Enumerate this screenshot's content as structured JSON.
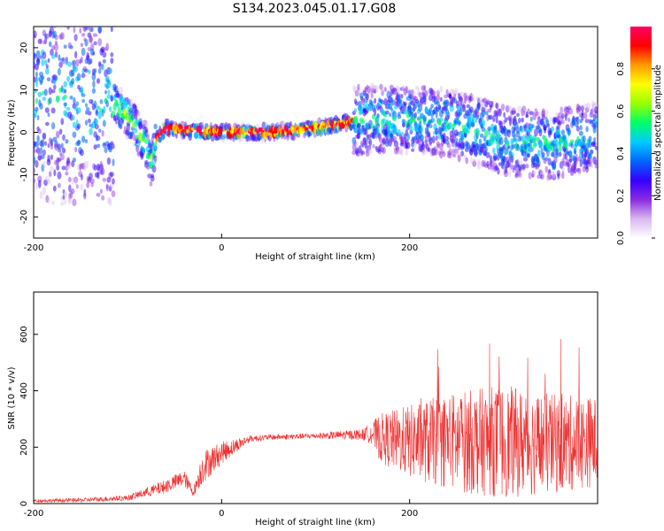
{
  "page": {
    "title": "S134.2023.045.01.17.G08"
  },
  "chart_data": [
    {
      "type": "heatmap",
      "title": "S134.2023.045.01.17.G08",
      "xlabel": "Height of straight line (km)",
      "ylabel": "Frequency (Hz)",
      "xlim": [
        -200,
        400
      ],
      "ylim": [
        -25,
        25
      ],
      "xticks": [
        -200,
        0,
        200
      ],
      "yticks": [
        20,
        10,
        0,
        -10,
        -20
      ],
      "grid": false,
      "colorbar": {
        "label": "Normalized spectral amplitude",
        "range": [
          0,
          1
        ],
        "ticks": [
          0.0,
          0.2,
          0.4,
          0.6,
          0.8
        ],
        "colors": [
          "#ffffff",
          "#d9b8f0",
          "#8a2be2",
          "#3300ff",
          "#0066ff",
          "#00ccff",
          "#00ff66",
          "#99ff00",
          "#ffff00",
          "#ff9900",
          "#ff0000",
          "#ff0066"
        ]
      },
      "ridge": {
        "x": [
          -120,
          -100,
          -80,
          -75,
          -70,
          -60,
          -40,
          0,
          50,
          100,
          150,
          200,
          250,
          300,
          350,
          400
        ],
        "y": [
          8,
          4,
          -3,
          -8,
          -2,
          1,
          0.5,
          0,
          0,
          1,
          3,
          3,
          2,
          -2,
          -3,
          -1
        ]
      }
    },
    {
      "type": "line",
      "xlabel": "Height of straight line (km)",
      "ylabel": "SNR (10 * v/v)",
      "xlim": [
        -200,
        400
      ],
      "ylim": [
        0,
        750
      ],
      "xticks": [
        -200,
        0,
        200
      ],
      "yticks": [
        0,
        200,
        400,
        600
      ],
      "grid": false,
      "series_color": "#ee3333",
      "envelope": {
        "x": [
          -200,
          -150,
          -100,
          -60,
          -40,
          -30,
          -20,
          0,
          30,
          50,
          100,
          150,
          160,
          170,
          200,
          250,
          300,
          350,
          400
        ],
        "mean": [
          10,
          12,
          20,
          60,
          90,
          40,
          130,
          180,
          230,
          235,
          240,
          245,
          250,
          230,
          220,
          220,
          220,
          210,
          220
        ],
        "spread": [
          6,
          8,
          10,
          25,
          30,
          15,
          60,
          40,
          12,
          10,
          10,
          20,
          40,
          90,
          130,
          180,
          200,
          180,
          160
        ]
      }
    }
  ]
}
